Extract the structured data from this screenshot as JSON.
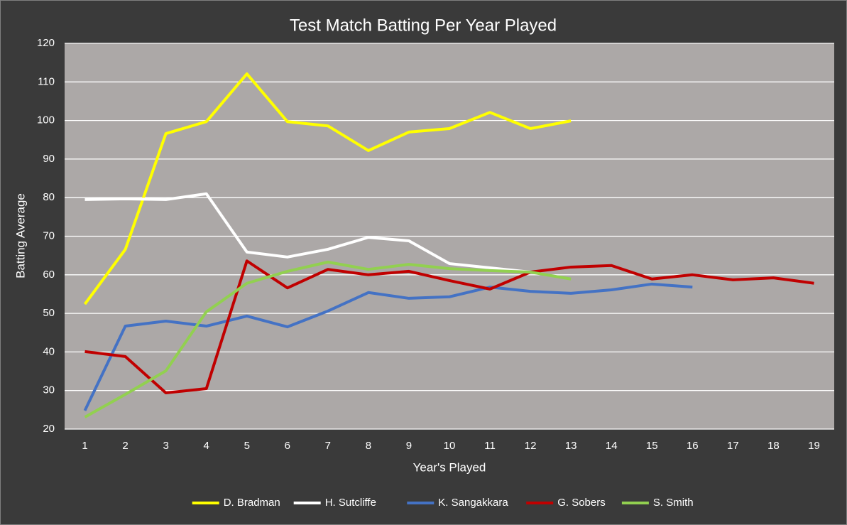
{
  "chart_data": {
    "type": "line",
    "title": "Test Match Batting Per Year Played",
    "x_label": "Year's Played",
    "y_label": "Batting Average",
    "categories": [
      1,
      2,
      3,
      4,
      5,
      6,
      7,
      8,
      9,
      10,
      11,
      12,
      13,
      14,
      15,
      16,
      17,
      18,
      19
    ],
    "series": [
      {
        "name": "D. Bradman",
        "color": "#ffff00",
        "values": [
          52.4,
          66.6,
          96.6,
          99.7,
          112.1,
          99.7,
          98.6,
          92.2,
          97,
          97.9,
          102.1,
          97.9,
          99.9,
          null,
          null,
          null,
          null,
          null,
          null
        ]
      },
      {
        "name": "H. Sutcliffe",
        "color": "#ffffff",
        "values": [
          79.5,
          79.7,
          79.5,
          81,
          65.9,
          64.6,
          66.6,
          69.7,
          68.8,
          62.9,
          61.8,
          60.7,
          null,
          null,
          null,
          null,
          null,
          null,
          null
        ]
      },
      {
        "name": "K. Sangakkara",
        "color": "#4472c4",
        "values": [
          24.8,
          46.7,
          48,
          46.7,
          49.3,
          46.5,
          50.6,
          55.4,
          53.9,
          54.3,
          56.8,
          55.7,
          55.2,
          56.1,
          57.6,
          56.8,
          null,
          null,
          null
        ]
      },
      {
        "name": "G. Sobers",
        "color": "#c00000",
        "values": [
          40.1,
          38.8,
          29.4,
          30.5,
          63.6,
          56.6,
          61.4,
          60,
          60.9,
          58.5,
          56.3,
          60.7,
          62,
          62.4,
          58.9,
          60,
          58.7,
          59.2,
          57.8
        ]
      },
      {
        "name": "S. Smith",
        "color": "#92d050",
        "values": [
          23.1,
          29,
          35.1,
          50.4,
          57.8,
          60.9,
          63.3,
          61.4,
          62.7,
          61.6,
          61.1,
          60.7,
          58.9,
          null,
          null,
          null,
          null,
          null,
          null
        ]
      }
    ],
    "ylim": [
      20,
      120
    ],
    "yticks": [
      20,
      30,
      40,
      50,
      60,
      70,
      80,
      90,
      100,
      110,
      120
    ],
    "grid": true,
    "legend": "bottom",
    "plot_background": "#aca8a7"
  }
}
